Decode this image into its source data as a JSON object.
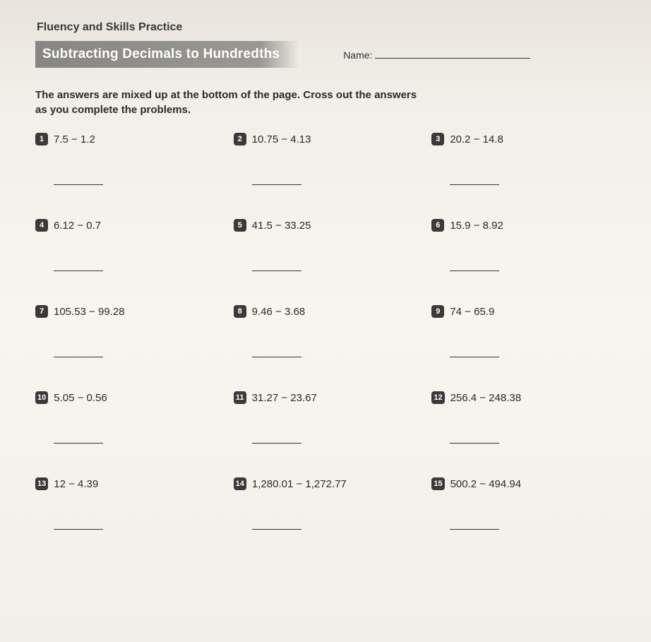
{
  "header": "Fluency and Skills Practice",
  "title": "Subtracting Decimals to Hundredths",
  "name_label": "Name:",
  "instructions_line1": "The answers are mixed up at the bottom of the page. Cross out the answers",
  "instructions_line2": "as you complete the problems.",
  "problems": {
    "p1": {
      "num": "1",
      "expr": "7.5 − 1.2"
    },
    "p2": {
      "num": "2",
      "expr": "10.75 − 4.13"
    },
    "p3": {
      "num": "3",
      "expr": "20.2 − 14.8"
    },
    "p4": {
      "num": "4",
      "expr": "6.12 − 0.7"
    },
    "p5": {
      "num": "5",
      "expr": "41.5 − 33.25"
    },
    "p6": {
      "num": "6",
      "expr": "15.9 − 8.92"
    },
    "p7": {
      "num": "7",
      "expr": "105.53 − 99.28"
    },
    "p8": {
      "num": "8",
      "expr": "9.46 − 3.68"
    },
    "p9": {
      "num": "9",
      "expr": "74 − 65.9"
    },
    "p10": {
      "num": "10",
      "expr": "5.05 − 0.56"
    },
    "p11": {
      "num": "11",
      "expr": "31.27 − 23.67"
    },
    "p12": {
      "num": "12",
      "expr": "256.4 − 248.38"
    },
    "p13": {
      "num": "13",
      "expr": "12 − 4.39"
    },
    "p14": {
      "num": "14",
      "expr": "1,280.01 − 1,272.77"
    },
    "p15": {
      "num": "15",
      "expr": "500.2 − 494.94"
    }
  }
}
